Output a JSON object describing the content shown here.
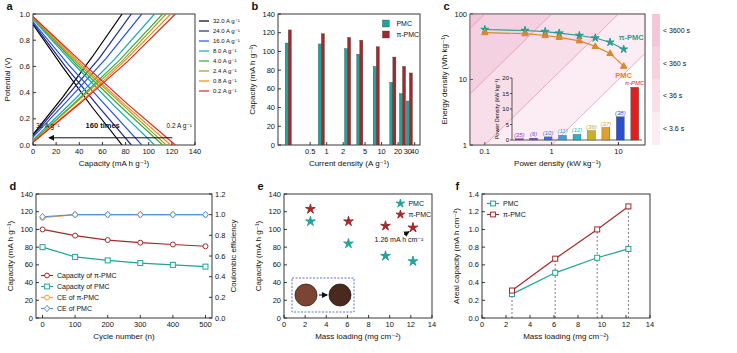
{
  "chart_data": [
    {
      "type": "line",
      "title": "a",
      "x_label": "Capacity (mA h g⁻¹)",
      "y_label": "Potential (V)",
      "xlim": [
        0,
        140
      ],
      "xticks": [
        0,
        20,
        40,
        60,
        80,
        100,
        120,
        140
      ],
      "ylim": [
        0,
        1
      ],
      "yticks": [
        {
          "value": 0,
          "label": "0.0"
        },
        0.2,
        0.4,
        0.6,
        0.8,
        {
          "value": 1,
          "label": "1.0"
        }
      ],
      "legend": "right",
      "annotations": [
        "160 times",
        "32 A g⁻¹",
        "0.2 A g⁻¹"
      ],
      "series": [
        {
          "name": "32.0 A g⁻¹",
          "color": "#000000",
          "x": [
            0,
            26,
            51,
            77,
            null,
            0,
            26,
            51,
            77
          ],
          "values": [
            0.08,
            0.37,
            0.67,
            1.0,
            null,
            0.92,
            0.59,
            0.29,
            0.0
          ]
        },
        {
          "name": "24.0 A g⁻¹",
          "color": "#1c2a8c",
          "x": [
            0,
            28,
            57,
            85,
            null,
            0,
            28,
            57,
            85
          ],
          "values": [
            0.07,
            0.36,
            0.66,
            1.0,
            null,
            0.93,
            0.6,
            0.29,
            0.0
          ]
        },
        {
          "name": "16.0 A g⁻¹",
          "color": "#2b50e0",
          "x": [
            0,
            31,
            63,
            94,
            null,
            0,
            31,
            63,
            94
          ],
          "values": [
            0.06,
            0.35,
            0.66,
            1.0,
            null,
            0.94,
            0.61,
            0.3,
            0.0
          ]
        },
        {
          "name": "8.0 A g⁻¹",
          "color": "#14a8b8",
          "x": [
            0,
            35,
            70,
            105,
            null,
            0,
            35,
            70,
            105
          ],
          "values": [
            0.04,
            0.34,
            0.65,
            1.0,
            null,
            0.96,
            0.62,
            0.3,
            0.0
          ]
        },
        {
          "name": "4.0 A g⁻¹",
          "color": "#3aa83a",
          "x": [
            0,
            37,
            75,
            112,
            null,
            0,
            37,
            75,
            112
          ],
          "values": [
            0.03,
            0.33,
            0.65,
            1.0,
            null,
            0.97,
            0.62,
            0.3,
            0.0
          ]
        },
        {
          "name": "2.4 A g⁻¹",
          "color": "#a0a020",
          "x": [
            0,
            38,
            77,
            115,
            null,
            0,
            38,
            77,
            115
          ],
          "values": [
            0.03,
            0.33,
            0.64,
            1.0,
            null,
            0.97,
            0.63,
            0.31,
            0.0
          ]
        },
        {
          "name": "0.8 A g⁻¹",
          "color": "#f08a1c",
          "x": [
            0,
            40,
            79,
            119,
            null,
            0,
            40,
            79,
            119
          ],
          "values": [
            0.02,
            0.32,
            0.64,
            1.0,
            null,
            0.98,
            0.63,
            0.31,
            0.0
          ]
        },
        {
          "name": "0.2 A g⁻¹",
          "color": "#e0241c",
          "x": [
            0,
            41,
            82,
            123,
            null,
            0,
            41,
            82,
            123
          ],
          "values": [
            0.02,
            0.32,
            0.64,
            1.0,
            null,
            0.98,
            0.64,
            0.31,
            0.0
          ]
        }
      ]
    },
    {
      "type": "bar",
      "title": "b",
      "x_label": "Current density (A g⁻¹)",
      "y_label": "Capacity (mA h g⁻¹)",
      "log": "x",
      "x": [
        0.2,
        0.8,
        2.4,
        4,
        8,
        16,
        24,
        32
      ],
      "xlim": [
        0.13,
        50
      ],
      "xticks": [
        0.5,
        1,
        2,
        5,
        10,
        20,
        30,
        40
      ],
      "ylim": [
        0,
        140
      ],
      "yticks": [
        0,
        20,
        40,
        60,
        80,
        100,
        120,
        140
      ],
      "legend": "upper right",
      "series": [
        {
          "name": "PMC",
          "color": "#1fa39a",
          "values": [
            109,
            108,
            103,
            97,
            84,
            67,
            55,
            47
          ]
        },
        {
          "name": "π-PMC",
          "color": "#a3282b",
          "values": [
            123,
            119,
            115,
            112,
            105,
            94,
            84,
            77
          ]
        }
      ]
    },
    {
      "type": "line",
      "title": "c",
      "x_label": "Power density (kW kg⁻¹)",
      "y_label": "Energy density (Wh kg⁻¹)",
      "log": true,
      "xlim": [
        0.06,
        25
      ],
      "xticks": [
        0.1,
        1,
        10
      ],
      "ylim": [
        1,
        100
      ],
      "yticks": [
        1,
        10,
        100
      ],
      "legend": "inline",
      "series": [
        {
          "name": "π-PMC",
          "color": "#2a9d8f",
          "marker": "star",
          "x": [
            0.1,
            0.4,
            0.8,
            1.3,
            2.6,
            4.5,
            7.5,
            12
          ],
          "values": [
            58,
            56,
            54,
            51,
            47,
            43,
            37,
            29
          ]
        },
        {
          "name": "PMC",
          "color": "#d9882a",
          "marker": "triangle",
          "x": [
            0.1,
            0.4,
            0.8,
            1.3,
            2.6,
            4.5,
            7.5,
            12
          ],
          "values": [
            52,
            50,
            47,
            44,
            39,
            32,
            25,
            16
          ]
        }
      ],
      "time_bands": {
        "values": [
          3600,
          360,
          36,
          3.6
        ],
        "labels": [
          "< 3600 s",
          "< 360 s",
          "< 36 s",
          "< 3.6 s"
        ]
      }
    },
    {
      "type": "bar",
      "y_label": "Power Density (kW kg⁻¹)",
      "categories": [
        "(35)",
        "(6)",
        "(10)",
        "(11)",
        "(12)",
        "(36)",
        "(37)",
        "(38)",
        "π-PMC"
      ],
      "values": [
        0.4,
        0.6,
        1.0,
        1.5,
        1.8,
        3.0,
        4.0,
        7.5,
        17
      ],
      "colors": [
        "#8e44ad",
        "#6a5acd",
        "#3f6fd8",
        "#3fa0e0",
        "#2bb5c0",
        "#c8b12a",
        "#e0a030",
        "#2a4fd0",
        "#e0201f"
      ],
      "ylim": [
        0,
        20
      ],
      "yticks": [
        0,
        5,
        10,
        15,
        20
      ]
    },
    {
      "type": "line",
      "title": "d",
      "x_label": "Cycle number (n)",
      "y_label": "Capacity (mA h g⁻¹)",
      "y2_label": "Coulombic efficiency",
      "x": [
        0,
        100,
        200,
        300,
        400,
        500
      ],
      "xlim": [
        -20,
        520
      ],
      "xticks": [
        0,
        100,
        200,
        300,
        400,
        500
      ],
      "ylim": [
        0,
        140
      ],
      "yticks": [
        0,
        20,
        40,
        60,
        80,
        100,
        120,
        140
      ],
      "y2lim": [
        0,
        1.2
      ],
      "y2ticks": [
        {
          "value": 0,
          "label": "0.0"
        },
        0.2,
        0.4,
        0.6,
        0.8,
        {
          "value": 1,
          "label": "1.0"
        },
        1.2
      ],
      "legend": "lower left",
      "series": [
        {
          "name": "Capacity of π-PMC",
          "color": "#a3282b",
          "marker": "circle",
          "values": [
            100,
            93,
            88,
            85,
            83,
            81
          ]
        },
        {
          "name": "Capacity of PMC",
          "color": "#1fa39a",
          "marker": "square",
          "values": [
            80,
            69,
            65,
            62,
            60,
            58
          ]
        },
        {
          "name": "CE of π-PMC",
          "color": "#e8a040",
          "marker": "circle",
          "axis": "y2",
          "values": [
            0.97,
            1.0,
            1.0,
            1.0,
            1.0,
            1.0
          ]
        },
        {
          "name": "CE of PMC",
          "color": "#5b8fd8",
          "marker": "diamond",
          "axis": "y2",
          "values": [
            0.98,
            1.0,
            1.0,
            1.0,
            1.0,
            1.0
          ]
        }
      ]
    },
    {
      "type": "scatter",
      "title": "e",
      "x_label": "Mass loading (mg cm⁻²)",
      "y_label": "Capacity (mA h g⁻¹)",
      "x": [
        2.5,
        6.1,
        9.6,
        12.2
      ],
      "xlim": [
        0,
        14
      ],
      "xticks": [
        0,
        2,
        4,
        6,
        8,
        10,
        12,
        14
      ],
      "ylim": [
        0,
        140
      ],
      "yticks": [
        0,
        20,
        40,
        60,
        80,
        100,
        120,
        140
      ],
      "legend": "upper right",
      "annotations": [
        "1.26 mA h cm⁻²"
      ],
      "series": [
        {
          "name": "PMC",
          "color": "#1fa39a",
          "marker": "star",
          "values": [
            109,
            84,
            70,
            64
          ]
        },
        {
          "name": "π-PMC",
          "color": "#a3282b",
          "marker": "star",
          "values": [
            123,
            109,
            104,
            102
          ]
        }
      ]
    },
    {
      "type": "line",
      "title": "f",
      "x_label": "Mass loading (mg cm⁻²)",
      "y_label": "Areal capacity (mA h cm⁻²)",
      "x": [
        2.5,
        6.1,
        9.6,
        12.2
      ],
      "xlim": [
        0,
        14
      ],
      "xticks": [
        0,
        2,
        4,
        6,
        8,
        10,
        12,
        14
      ],
      "ylim": [
        0,
        1.4
      ],
      "yticks": [
        {
          "value": 0,
          "label": "0.0"
        },
        0.2,
        0.4,
        0.6,
        0.8,
        {
          "value": 1,
          "label": "1.0"
        },
        1.2,
        1.4
      ],
      "legend": "upper left",
      "series": [
        {
          "name": "PMC",
          "color": "#1fa39a",
          "marker": "square",
          "values": [
            0.27,
            0.51,
            0.68,
            0.78
          ]
        },
        {
          "name": "π-PMC",
          "color": "#a3282b",
          "marker": "square",
          "values": [
            0.31,
            0.67,
            1.0,
            1.26
          ]
        }
      ]
    }
  ]
}
